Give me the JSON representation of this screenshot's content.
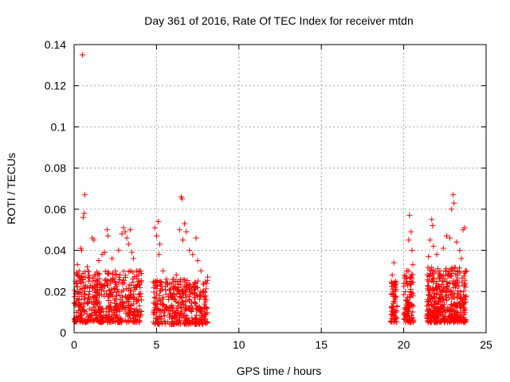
{
  "chart_data": {
    "type": "scatter",
    "title": "Day 361 of 2016, Rate Of TEC Index for receiver mtdn",
    "xlabel": "GPS time / hours",
    "ylabel": "ROTI / TECUs",
    "xlim": [
      0,
      25
    ],
    "ylim": [
      0,
      0.14
    ],
    "xticks": [
      0,
      5,
      10,
      15,
      20,
      25
    ],
    "xtick_labels": [
      "0",
      "5",
      "10",
      "15",
      "20",
      "25"
    ],
    "yticks": [
      0,
      0.02,
      0.04,
      0.06,
      0.08,
      0.1,
      0.12,
      0.14
    ],
    "ytick_labels": [
      "0",
      "0.02",
      "0.04",
      "0.06",
      "0.08",
      "0.1",
      "0.12",
      "0.14"
    ],
    "grid": true,
    "marker": "+",
    "color": "#ff0000",
    "series": [
      {
        "name": "ROTI",
        "points": [
          [
            0.5,
            0.135
          ],
          [
            0.65,
            0.067
          ],
          [
            0.6,
            0.058
          ],
          [
            0.55,
            0.056
          ],
          [
            0.4,
            0.041
          ],
          [
            0.45,
            0.04
          ],
          [
            1.1,
            0.046
          ],
          [
            1.2,
            0.045
          ],
          [
            0.2,
            0.033
          ],
          [
            0.3,
            0.03
          ],
          [
            0.1,
            0.025
          ],
          [
            0.8,
            0.032
          ],
          [
            0.9,
            0.028
          ],
          [
            1.5,
            0.035
          ],
          [
            1.7,
            0.038
          ],
          [
            2.0,
            0.05
          ],
          [
            2.05,
            0.047
          ],
          [
            1.85,
            0.039
          ],
          [
            2.3,
            0.036
          ],
          [
            2.5,
            0.03
          ],
          [
            2.7,
            0.04
          ],
          [
            2.9,
            0.048
          ],
          [
            3.0,
            0.051
          ],
          [
            3.1,
            0.049
          ],
          [
            3.2,
            0.046
          ],
          [
            3.3,
            0.043
          ],
          [
            3.4,
            0.05
          ],
          [
            3.5,
            0.039
          ],
          [
            3.6,
            0.036
          ],
          [
            3.8,
            0.03
          ],
          [
            3.9,
            0.025
          ],
          [
            4.0,
            0.022
          ],
          [
            4.9,
            0.051
          ],
          [
            5.0,
            0.047
          ],
          [
            5.1,
            0.054
          ],
          [
            5.2,
            0.043
          ],
          [
            5.15,
            0.038
          ],
          [
            5.4,
            0.03
          ],
          [
            5.6,
            0.026
          ],
          [
            5.8,
            0.024
          ],
          [
            6.0,
            0.022
          ],
          [
            6.2,
            0.028
          ],
          [
            6.4,
            0.05
          ],
          [
            6.5,
            0.066
          ],
          [
            6.55,
            0.065
          ],
          [
            6.6,
            0.045
          ],
          [
            6.7,
            0.053
          ],
          [
            6.8,
            0.049
          ],
          [
            7.0,
            0.04
          ],
          [
            7.2,
            0.038
          ],
          [
            7.4,
            0.046
          ],
          [
            7.5,
            0.035
          ],
          [
            7.7,
            0.03
          ],
          [
            8.1,
            0.027
          ],
          [
            8.0,
            0.016
          ],
          [
            8.05,
            0.012
          ],
          [
            7.9,
            0.009
          ],
          [
            19.3,
            0.028
          ],
          [
            19.4,
            0.034
          ],
          [
            19.5,
            0.022
          ],
          [
            19.45,
            0.015
          ],
          [
            19.35,
            0.01
          ],
          [
            20.2,
            0.03
          ],
          [
            20.3,
            0.045
          ],
          [
            20.35,
            0.057
          ],
          [
            20.45,
            0.049
          ],
          [
            20.5,
            0.04
          ],
          [
            20.55,
            0.033
          ],
          [
            20.4,
            0.02
          ],
          [
            20.3,
            0.012
          ],
          [
            21.5,
            0.037
          ],
          [
            21.6,
            0.045
          ],
          [
            21.7,
            0.055
          ],
          [
            21.75,
            0.052
          ],
          [
            21.8,
            0.042
          ],
          [
            22.0,
            0.038
          ],
          [
            22.2,
            0.03
          ],
          [
            22.4,
            0.041
          ],
          [
            22.6,
            0.047
          ],
          [
            22.8,
            0.046
          ],
          [
            22.9,
            0.06
          ],
          [
            23.0,
            0.067
          ],
          [
            23.05,
            0.063
          ],
          [
            23.2,
            0.044
          ],
          [
            23.4,
            0.04
          ],
          [
            23.5,
            0.036
          ],
          [
            23.6,
            0.05
          ],
          [
            23.7,
            0.051
          ],
          [
            23.8,
            0.03
          ],
          [
            23.75,
            0.015
          ]
        ],
        "dense_bands": [
          {
            "x": [
              0.0,
              4.1
            ],
            "y": [
              0.005,
              0.03
            ],
            "count": 520
          },
          {
            "x": [
              4.8,
              8.1
            ],
            "y": [
              0.004,
              0.026
            ],
            "count": 380
          },
          {
            "x": [
              19.2,
              19.6
            ],
            "y": [
              0.005,
              0.025
            ],
            "count": 60
          },
          {
            "x": [
              20.0,
              20.6
            ],
            "y": [
              0.005,
              0.03
            ],
            "count": 90
          },
          {
            "x": [
              21.4,
              23.8
            ],
            "y": [
              0.005,
              0.032
            ],
            "count": 420
          }
        ]
      }
    ]
  }
}
